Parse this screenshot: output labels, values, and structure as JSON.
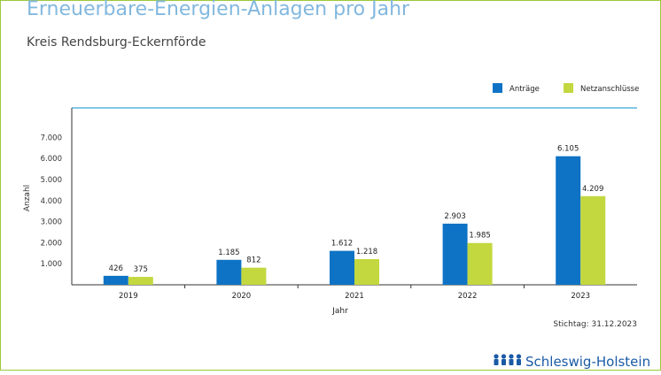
{
  "header": {
    "title": "Erneuerbare-Energien-Anlagen pro Jahr",
    "subtitle": "Kreis Rendsburg-Eckernförde"
  },
  "footer": {
    "stichtag": "Stichtag: 31.12.2023",
    "logo_text": "Schleswig-Holstein"
  },
  "colors": {
    "frame": "#9bc93b",
    "title": "#82b8df",
    "antraege": "#0e73c4",
    "netzanschluesse": "#c3d83f",
    "logo": "#1a5aa6"
  },
  "chart_data": {
    "type": "bar",
    "title": "Erneuerbare-Energien-Anlagen pro Jahr",
    "subtitle": "Kreis Rendsburg-Eckernförde",
    "xlabel": "Jahr",
    "ylabel": "Anzahl",
    "categories": [
      "2019",
      "2020",
      "2021",
      "2022",
      "2023"
    ],
    "series": [
      {
        "name": "Anträge",
        "color": "#0e73c4",
        "values": [
          426,
          1185,
          1612,
          2903,
          6105
        ],
        "labels": [
          "426",
          "1.185",
          "1.612",
          "2.903",
          "6.105"
        ]
      },
      {
        "name": "Netzanschlüsse",
        "color": "#c3d83f",
        "values": [
          375,
          812,
          1218,
          1985,
          4209
        ],
        "labels": [
          "375",
          "812",
          "1.218",
          "1.985",
          "4.209"
        ]
      }
    ],
    "yticks": [
      1000,
      2000,
      3000,
      4000,
      5000,
      6000,
      7000
    ],
    "ytick_labels": [
      "1.000",
      "2.000",
      "3.000",
      "4.000",
      "5.000",
      "6.000",
      "7.000"
    ],
    "ylim": [
      0,
      8400
    ],
    "grid": false,
    "legend_position": "top-right"
  }
}
